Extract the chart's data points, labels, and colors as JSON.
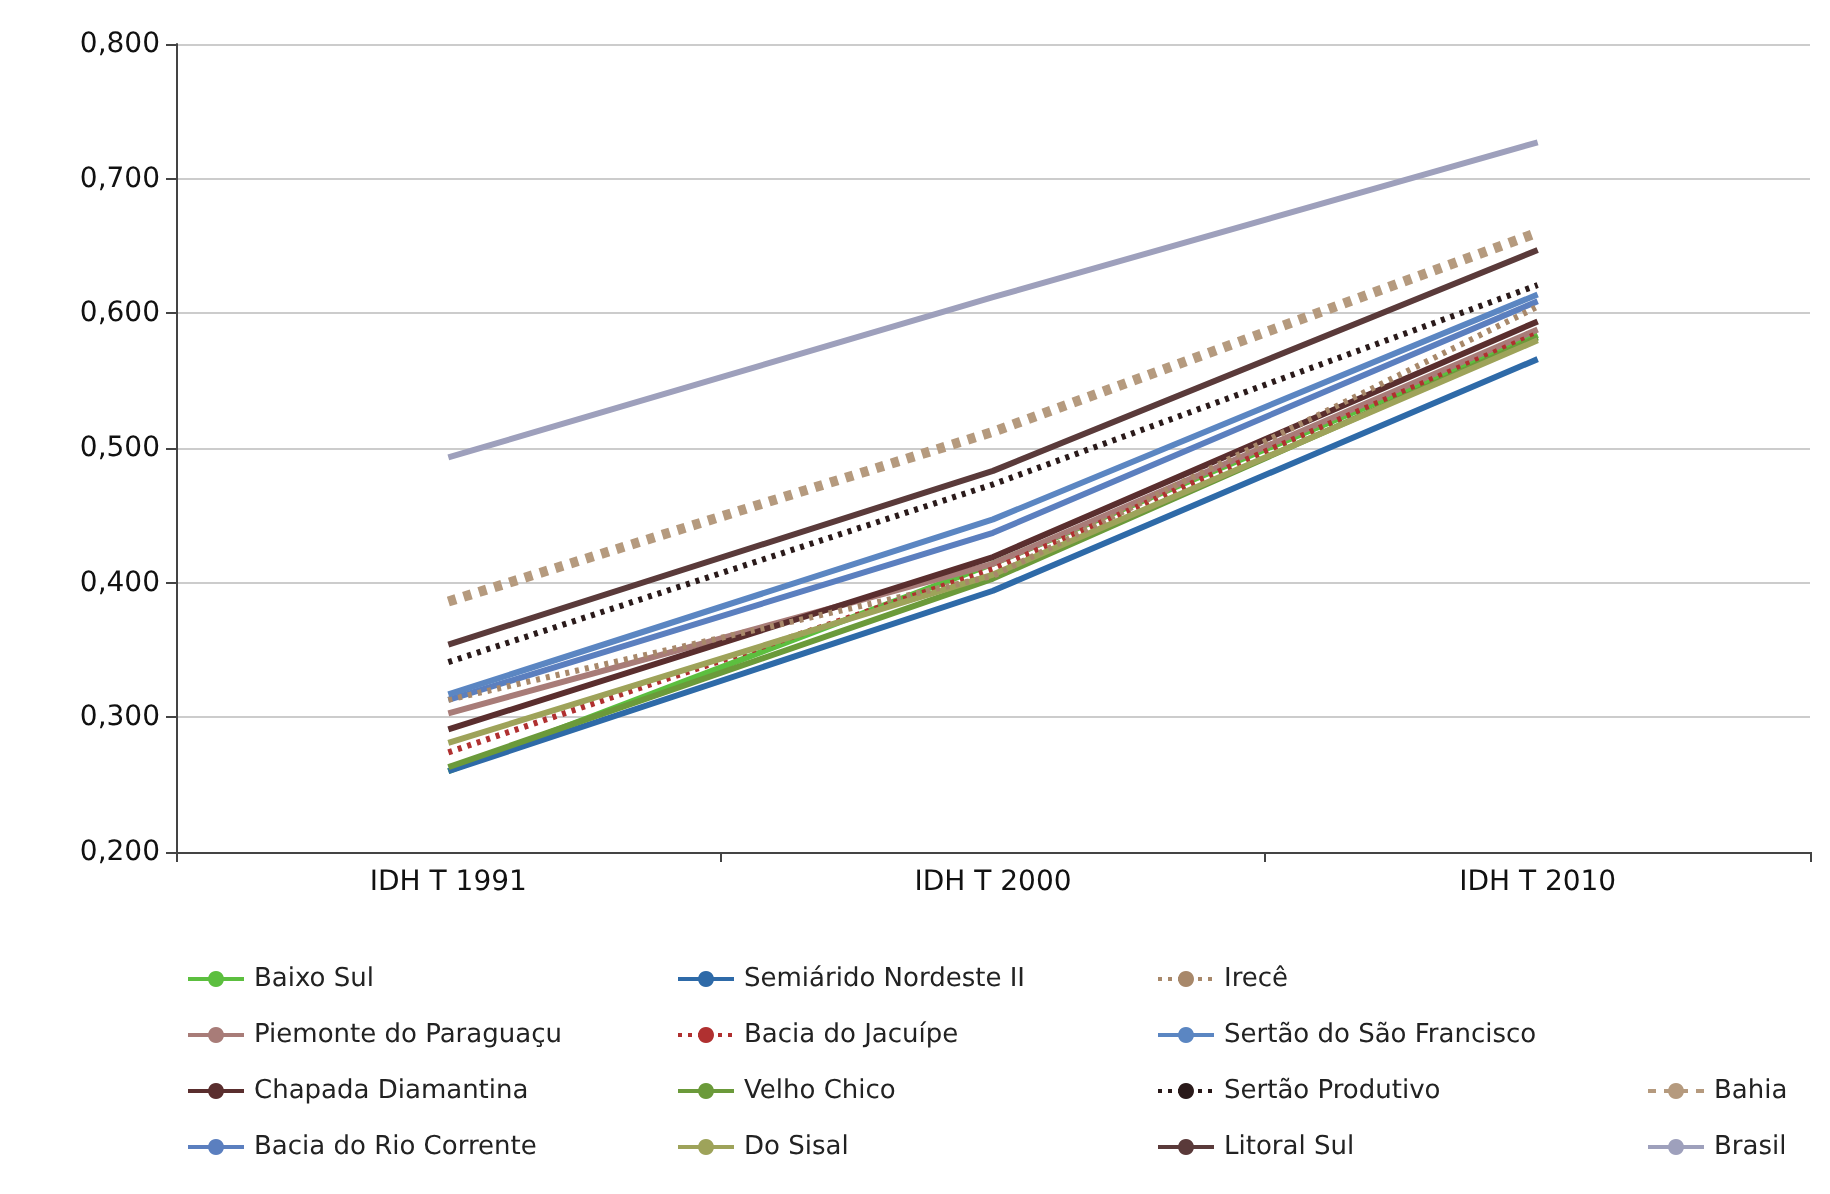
{
  "chart_data": {
    "type": "line",
    "categories": [
      "IDH T 1991",
      "IDH T 2000",
      "IDH T 2010"
    ],
    "series": [
      {
        "name": "Baixo Sul",
        "color": "#5cbf3f",
        "line_style": "solid",
        "values": [
          0.26,
          0.414,
          0.584
        ]
      },
      {
        "name": "Piemonte do Paraguaçu",
        "color": "#a87c78",
        "line_style": "solid",
        "values": [
          0.303,
          0.414,
          0.588
        ]
      },
      {
        "name": "Chapada Diamantina",
        "color": "#5a2e2e",
        "line_style": "solid",
        "values": [
          0.291,
          0.419,
          0.594
        ]
      },
      {
        "name": "Bacia do Rio Corrente",
        "color": "#5b7fbf",
        "line_style": "solid",
        "values": [
          0.313,
          0.437,
          0.609
        ]
      },
      {
        "name": "Semiárido Nordeste II",
        "color": "#2e6aa8",
        "line_style": "solid",
        "values": [
          0.26,
          0.394,
          0.566
        ]
      },
      {
        "name": "Bacia do Jacuípe",
        "color": "#b03030",
        "line_style": "dotted",
        "values": [
          0.274,
          0.41,
          0.585
        ]
      },
      {
        "name": "Velho Chico",
        "color": "#6b9a3a",
        "line_style": "solid",
        "values": [
          0.263,
          0.403,
          0.582
        ]
      },
      {
        "name": "Do Sisal",
        "color": "#9ea35a",
        "line_style": "solid",
        "values": [
          0.281,
          0.406,
          0.58
        ]
      },
      {
        "name": "Irecê",
        "color": "#a8886a",
        "line_style": "dotted",
        "values": [
          0.313,
          0.405,
          0.605
        ]
      },
      {
        "name": "Sertão do São Francisco",
        "color": "#5b86c2",
        "line_style": "solid",
        "values": [
          0.317,
          0.447,
          0.614
        ]
      },
      {
        "name": "Sertão Produtivo",
        "color": "#2a1a1a",
        "line_style": "dotted",
        "values": [
          0.341,
          0.473,
          0.621
        ]
      },
      {
        "name": "Litoral Sul",
        "color": "#5a3a3a",
        "line_style": "solid",
        "values": [
          0.354,
          0.483,
          0.647
        ]
      },
      {
        "name": "Bahia",
        "color": "#b59a7e",
        "line_style": "dashed",
        "values": [
          0.386,
          0.512,
          0.66
        ]
      },
      {
        "name": "Brasil",
        "color": "#9ea0bc",
        "line_style": "solid",
        "values": [
          0.493,
          0.612,
          0.727
        ]
      }
    ],
    "ylim": [
      0.2,
      0.8
    ],
    "yticks": [
      {
        "value": 0.2,
        "label": "0,200"
      },
      {
        "value": 0.3,
        "label": "0,300"
      },
      {
        "value": 0.4,
        "label": "0,400"
      },
      {
        "value": 0.5,
        "label": "0,500"
      },
      {
        "value": 0.6,
        "label": "0,600"
      },
      {
        "value": 0.7,
        "label": "0,700"
      },
      {
        "value": 0.8,
        "label": "0,800"
      }
    ],
    "grid": "y",
    "legend": "bottom",
    "marker": "none"
  }
}
